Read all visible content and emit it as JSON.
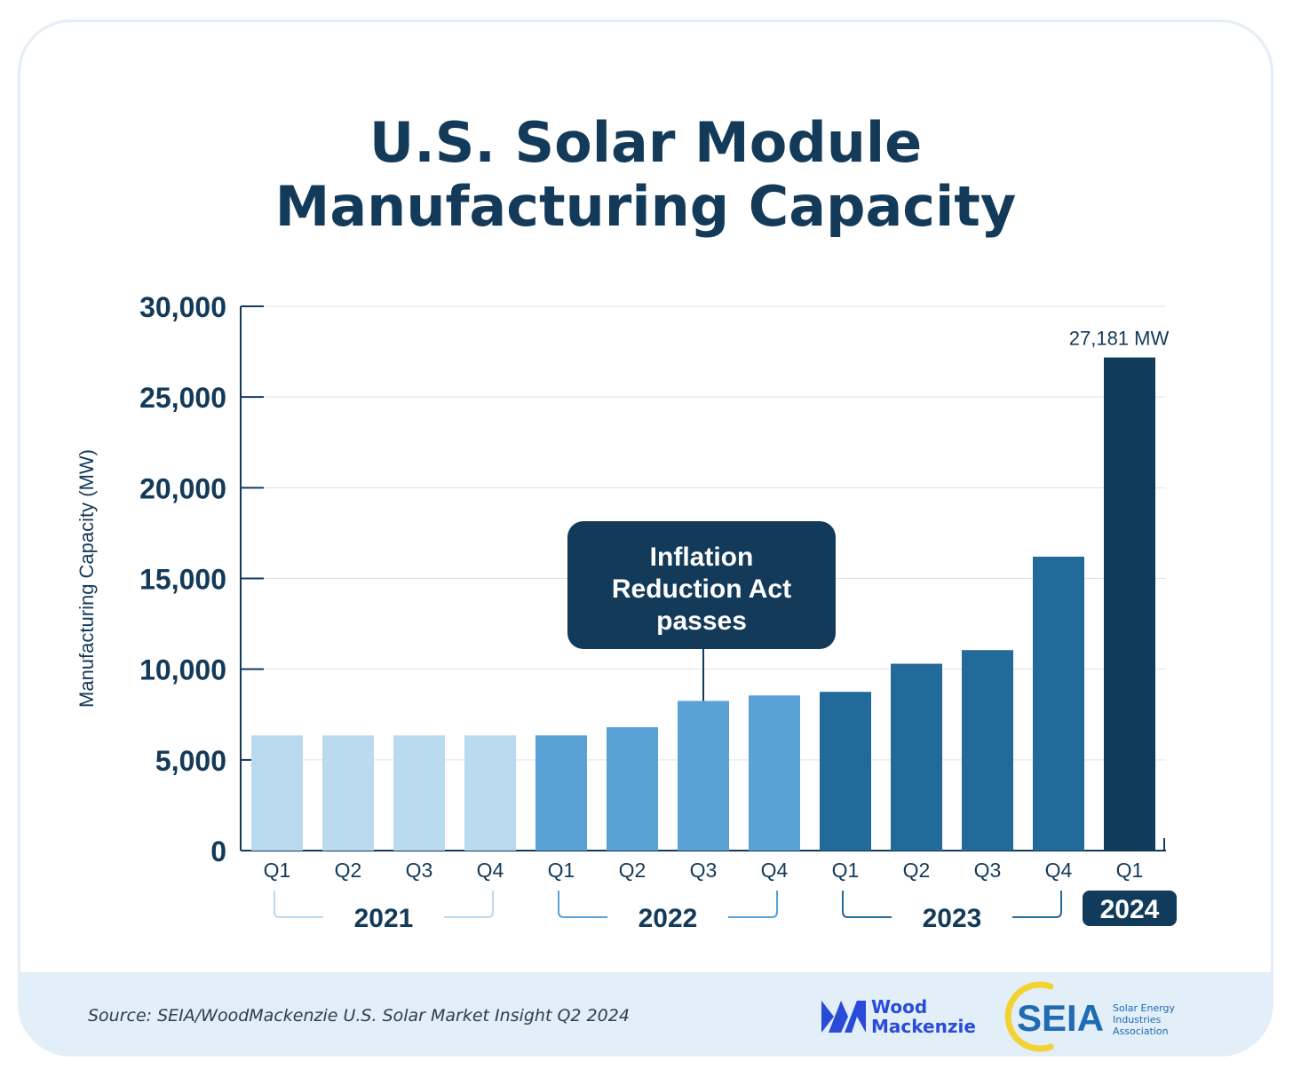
{
  "title_lines": [
    "U.S. Solar Module",
    "Manufacturing Capacity"
  ],
  "source": "Source: SEIA/WoodMackenzie U.S. Solar Market Insight Q2 2024",
  "logos": {
    "woodmackenzie": [
      "Wood",
      "Mackenzie"
    ],
    "seia": {
      "mark": "SEIA",
      "subtitle": [
        "Solar Energy",
        "Industries",
        "Association"
      ]
    }
  },
  "colors": {
    "title": "#143a5a",
    "bar_2021": "#badbef",
    "bar_2022": "#5aa1d6",
    "bar_2023": "#226a99",
    "bar_2024": "#113b5b",
    "annotation_bg": "#143a5a",
    "grid": "#dde3e9"
  },
  "chart_data": {
    "type": "bar",
    "ylabel": "Manufacturing Capacity (MW)",
    "ylim": [
      0,
      30000
    ],
    "yticks": [
      0,
      5000,
      10000,
      15000,
      20000,
      25000,
      30000
    ],
    "ytick_labels": [
      "0",
      "5,000",
      "10,000",
      "15,000",
      "20,000",
      "25,000",
      "30,000"
    ],
    "grid": true,
    "categories": [
      "Q1",
      "Q2",
      "Q3",
      "Q4",
      "Q1",
      "Q2",
      "Q3",
      "Q4",
      "Q1",
      "Q2",
      "Q3",
      "Q4",
      "Q1"
    ],
    "years": [
      "2021",
      "2021",
      "2021",
      "2021",
      "2022",
      "2022",
      "2022",
      "2022",
      "2023",
      "2023",
      "2023",
      "2023",
      "2024"
    ],
    "values": [
      6350,
      6350,
      6350,
      6350,
      6350,
      6800,
      8250,
      8550,
      8750,
      10300,
      11050,
      16200,
      27181
    ],
    "year_groups": [
      {
        "label": "2021",
        "start": 0,
        "end": 3
      },
      {
        "label": "2022",
        "start": 4,
        "end": 7
      },
      {
        "label": "2023",
        "start": 8,
        "end": 11
      },
      {
        "label": "2024",
        "start": 12,
        "end": 12,
        "highlight": true
      }
    ],
    "data_labels": [
      {
        "index": 12,
        "text": "27,181 MW"
      }
    ],
    "annotations": [
      {
        "index": 6,
        "lines": [
          "Inflation",
          "Reduction Act",
          "passes"
        ]
      }
    ]
  }
}
